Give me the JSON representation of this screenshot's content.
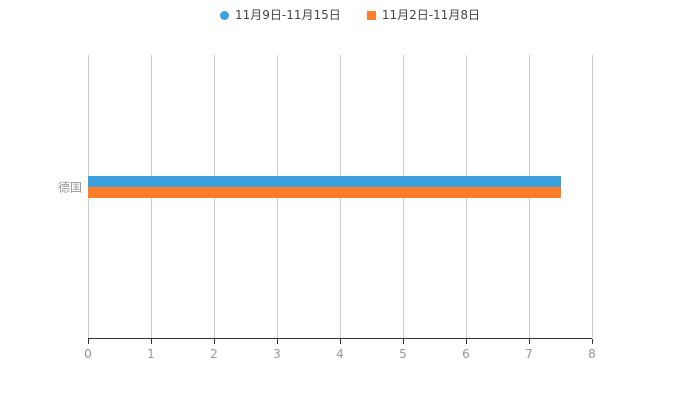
{
  "legend": {
    "items": [
      {
        "label": "11月9日-11月15日",
        "color": "#3aa1dd",
        "shape": "circle"
      },
      {
        "label": "11月2日-11月8日",
        "color": "#ff7d29",
        "shape": "square"
      }
    ]
  },
  "chart_data": {
    "type": "bar",
    "orientation": "horizontal",
    "title": "",
    "categories": [
      "德国"
    ],
    "series": [
      {
        "name": "11月9日-11月15日",
        "color": "#3aa1dd",
        "values": [
          7.5
        ]
      },
      {
        "name": "11月2日-11月8日",
        "color": "#ff7d29",
        "values": [
          7.5
        ]
      }
    ],
    "xlim": [
      0,
      8
    ],
    "xticks": [
      0,
      1,
      2,
      3,
      4,
      5,
      6,
      7,
      8
    ],
    "grid": true,
    "legend_position": "top",
    "axis_color": "#333333",
    "gridline_color": "#cccccc",
    "tick_label_color": "#999999",
    "category_label_color": "#999999",
    "bar_thickness_px": 11
  }
}
